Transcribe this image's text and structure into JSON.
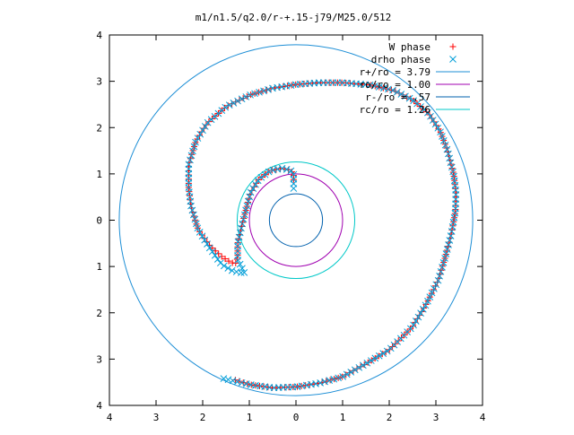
{
  "chart_data": {
    "type": "scatter",
    "title": "m1/n1.5/q2.0/r-+.15-j79/M25.0/512",
    "xlim": [
      -4,
      4
    ],
    "ylim": [
      -4,
      4
    ],
    "x_ticks": [
      {
        "value": -4,
        "label": "4"
      },
      {
        "value": -3,
        "label": "3"
      },
      {
        "value": -2,
        "label": "2"
      },
      {
        "value": -1,
        "label": "1"
      },
      {
        "value": 0,
        "label": "0"
      },
      {
        "value": 1,
        "label": "1"
      },
      {
        "value": 2,
        "label": "2"
      },
      {
        "value": 3,
        "label": "3"
      },
      {
        "value": 4,
        "label": "4"
      }
    ],
    "y_ticks": [
      {
        "value": -4,
        "label": "4"
      },
      {
        "value": -3,
        "label": "3"
      },
      {
        "value": -2,
        "label": "2"
      },
      {
        "value": -1,
        "label": "1"
      },
      {
        "value": 0,
        "label": "0"
      },
      {
        "value": 1,
        "label": "1"
      },
      {
        "value": 2,
        "label": "2"
      },
      {
        "value": 3,
        "label": "3"
      },
      {
        "value": 4,
        "label": "4"
      }
    ],
    "grid": false,
    "legend_position": "top-right",
    "series": [
      {
        "name": "W phase",
        "marker": "+",
        "color": "#ff0000",
        "path": [
          [
            -1.3,
            -3.45
          ],
          [
            -1.0,
            -3.55
          ],
          [
            -0.5,
            -3.62
          ],
          [
            0.0,
            -3.6
          ],
          [
            0.5,
            -3.52
          ],
          [
            1.0,
            -3.38
          ],
          [
            1.5,
            -3.1
          ],
          [
            2.0,
            -2.8
          ],
          [
            2.5,
            -2.3
          ],
          [
            2.8,
            -1.8
          ],
          [
            3.05,
            -1.3
          ],
          [
            3.2,
            -0.8
          ],
          [
            3.33,
            -0.3
          ],
          [
            3.42,
            0.2
          ],
          [
            3.43,
            0.6
          ],
          [
            3.38,
            1.0
          ],
          [
            3.25,
            1.5
          ],
          [
            3.1,
            1.9
          ],
          [
            2.85,
            2.3
          ],
          [
            2.5,
            2.6
          ],
          [
            2.1,
            2.8
          ],
          [
            1.6,
            2.92
          ],
          [
            1.0,
            2.97
          ],
          [
            0.5,
            2.97
          ],
          [
            0.0,
            2.93
          ],
          [
            -0.5,
            2.85
          ],
          [
            -1.0,
            2.7
          ],
          [
            -1.5,
            2.45
          ],
          [
            -1.9,
            2.1
          ],
          [
            -2.15,
            1.7
          ],
          [
            -2.3,
            1.2
          ],
          [
            -2.3,
            0.7
          ],
          [
            -2.25,
            0.3
          ],
          [
            -2.1,
            -0.2
          ],
          [
            -1.85,
            -0.55
          ],
          [
            -1.6,
            -0.78
          ],
          [
            -1.45,
            -0.88
          ],
          [
            -1.3,
            -0.95
          ],
          [
            -1.25,
            -0.8
          ],
          [
            -1.25,
            -0.5
          ],
          [
            -1.18,
            -0.2
          ],
          [
            -1.08,
            0.2
          ],
          [
            -0.97,
            0.6
          ],
          [
            -0.8,
            0.88
          ],
          [
            -0.55,
            1.07
          ],
          [
            -0.3,
            1.12
          ],
          [
            -0.12,
            1.08
          ],
          [
            -0.05,
            1.0
          ],
          [
            -0.05,
            0.8
          ]
        ],
        "step": 0.09
      },
      {
        "name": "drho phase",
        "marker": "x",
        "color": "#009ed8",
        "path": [
          [
            -1.55,
            -3.42
          ],
          [
            -1.0,
            -3.55
          ],
          [
            -0.5,
            -3.62
          ],
          [
            0.0,
            -3.6
          ],
          [
            0.5,
            -3.52
          ],
          [
            1.0,
            -3.38
          ],
          [
            1.5,
            -3.1
          ],
          [
            2.0,
            -2.8
          ],
          [
            2.5,
            -2.3
          ],
          [
            2.8,
            -1.8
          ],
          [
            3.05,
            -1.3
          ],
          [
            3.2,
            -0.8
          ],
          [
            3.33,
            -0.3
          ],
          [
            3.42,
            0.2
          ],
          [
            3.43,
            0.6
          ],
          [
            3.38,
            1.0
          ],
          [
            3.25,
            1.5
          ],
          [
            3.1,
            1.9
          ],
          [
            2.85,
            2.3
          ],
          [
            2.5,
            2.6
          ],
          [
            2.1,
            2.8
          ],
          [
            1.6,
            2.92
          ],
          [
            1.0,
            2.97
          ],
          [
            0.5,
            2.97
          ],
          [
            0.0,
            2.93
          ],
          [
            -0.5,
            2.85
          ],
          [
            -1.0,
            2.7
          ],
          [
            -1.5,
            2.45
          ],
          [
            -1.9,
            2.1
          ],
          [
            -2.15,
            1.7
          ],
          [
            -2.3,
            1.2
          ],
          [
            -2.3,
            0.7
          ],
          [
            -2.25,
            0.3
          ],
          [
            -2.1,
            -0.2
          ],
          [
            -1.85,
            -0.6
          ],
          [
            -1.6,
            -0.95
          ],
          [
            -1.35,
            -1.1
          ],
          [
            -1.1,
            -1.15
          ],
          [
            -1.15,
            -1.05
          ],
          [
            -1.25,
            -0.85
          ],
          [
            -1.25,
            -0.5
          ],
          [
            -1.18,
            -0.2
          ],
          [
            -1.08,
            0.2
          ],
          [
            -0.97,
            0.6
          ],
          [
            -0.8,
            0.88
          ],
          [
            -0.55,
            1.07
          ],
          [
            -0.3,
            1.12
          ],
          [
            -0.12,
            1.08
          ],
          [
            -0.05,
            1.0
          ],
          [
            -0.05,
            0.6
          ]
        ],
        "step": 0.1
      }
    ],
    "circles": [
      {
        "name": "r+/ro = 3.79",
        "radius": 3.79,
        "color": "#1e8fd6"
      },
      {
        "name": "ro/ro = 1.00",
        "radius": 1.0,
        "color": "#a000b0"
      },
      {
        "name": "r-/ro = .57",
        "radius": 0.57,
        "color": "#0060ad"
      },
      {
        "name": "rc/ro = 1.26",
        "radius": 1.26,
        "color": "#00c8c8"
      }
    ]
  }
}
